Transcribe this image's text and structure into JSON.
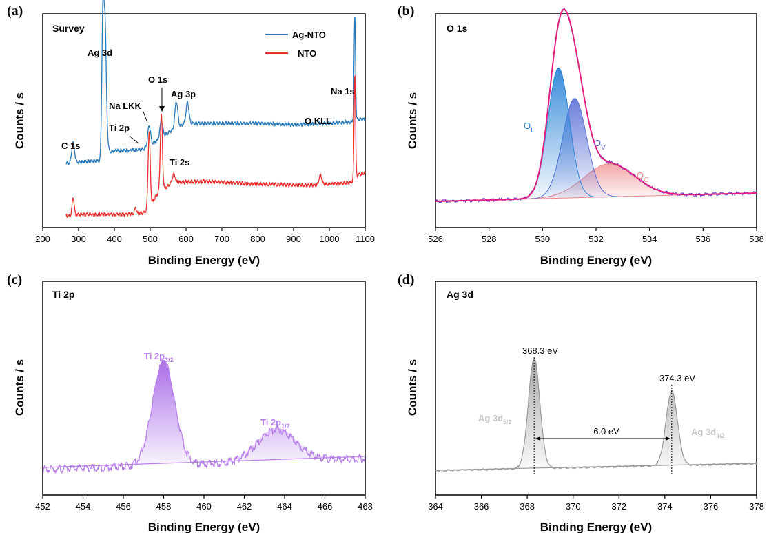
{
  "chart_data": [
    {
      "panel": "(a)",
      "title": "Survey",
      "type": "line",
      "xlabel": "Binding Energy (eV)",
      "ylabel": "Counts / s",
      "xlim": [
        200,
        1100
      ],
      "xticks": [
        200,
        300,
        400,
        500,
        600,
        700,
        800,
        900,
        1000,
        1100
      ],
      "legend_position": "top-right",
      "colors": {
        "Ag-NTO": "#2b7bb9",
        "NTO": "#e8312f"
      },
      "series": [
        {
          "name": "Ag-NTO",
          "baseline": [
            [
              200,
              0.4
            ],
            [
              280,
              0.4
            ],
            [
              300,
              0.41
            ],
            [
              360,
              0.42
            ],
            [
              375,
              0.47
            ],
            [
              400,
              0.49
            ],
            [
              480,
              0.5
            ],
            [
              500,
              0.53
            ],
            [
              560,
              0.64
            ],
            [
              600,
              0.69
            ],
            [
              700,
              0.69
            ],
            [
              800,
              0.69
            ],
            [
              900,
              0.68
            ],
            [
              1000,
              0.69
            ],
            [
              1060,
              0.7
            ],
            [
              1080,
              0.72
            ],
            [
              1100,
              0.72
            ]
          ],
          "peaks": [
            [
              285,
              0.15,
              4
            ],
            [
              368,
              1.05,
              3
            ],
            [
              374,
              0.72,
              3
            ],
            [
              377,
              0.2,
              4
            ],
            [
              497,
              0.15,
              4
            ],
            [
              531,
              0.12,
              4
            ],
            [
              573,
              0.19,
              4
            ],
            [
              604,
              0.15,
              4
            ],
            [
              1071,
              0.75,
              2
            ]
          ]
        },
        {
          "name": "NTO",
          "baseline": [
            [
              200,
              0.02
            ],
            [
              280,
              0.02
            ],
            [
              300,
              0.03
            ],
            [
              460,
              0.03
            ],
            [
              490,
              0.05
            ],
            [
              520,
              0.18
            ],
            [
              560,
              0.26
            ],
            [
              650,
              0.27
            ],
            [
              800,
              0.25
            ],
            [
              960,
              0.24
            ],
            [
              1000,
              0.25
            ],
            [
              1060,
              0.26
            ],
            [
              1080,
              0.32
            ],
            [
              1100,
              0.33
            ]
          ],
          "peaks": [
            [
              285,
              0.13,
              3
            ],
            [
              459,
              0.05,
              3
            ],
            [
              497,
              0.55,
              3
            ],
            [
              531,
              0.55,
              3
            ],
            [
              566,
              0.06,
              4
            ],
            [
              975,
              0.07,
              4
            ],
            [
              1071,
              0.75,
              2
            ]
          ]
        }
      ],
      "annotations": [
        "Ag 3d",
        "O 1s",
        "Na LKK",
        "Ag 3p",
        "Na 1s",
        "Ti 2p",
        "C 1s",
        "O KLL",
        "Ti 2s"
      ]
    },
    {
      "panel": "(b)",
      "title": "O 1s",
      "type": "line",
      "xlabel": "Binding Energy (eV)",
      "ylabel": "Counts / s",
      "xlim": [
        526,
        538
      ],
      "xticks": [
        526,
        528,
        530,
        532,
        534,
        536,
        538
      ],
      "baseline": [
        [
          526,
          0.0
        ],
        [
          538,
          0.04
        ]
      ],
      "envelope_color": "#e0207e",
      "series": [
        {
          "name": "O_L",
          "color": "#2f86d8",
          "center": 530.6,
          "height": 0.63,
          "sigma": 0.4
        },
        {
          "name": "O_V",
          "color": "#5a6fd6",
          "center": 531.2,
          "height": 0.48,
          "sigma": 0.45
        },
        {
          "name": "O_C",
          "color": "#f08a8a",
          "center": 532.5,
          "height": 0.16,
          "sigma": 0.95
        }
      ],
      "annotations": [
        {
          "main": "O",
          "sub": "L",
          "color": "#2f86d8"
        },
        {
          "main": "O",
          "sub": "V",
          "color": "#5a6fd6"
        },
        {
          "main": "O",
          "sub": "C",
          "color": "#f08a8a"
        }
      ]
    },
    {
      "panel": "(c)",
      "title": "Ti 2p",
      "type": "line",
      "xlabel": "Binding Energy (eV)",
      "ylabel": "Counts / s",
      "xlim": [
        452,
        468
      ],
      "xticks": [
        452,
        454,
        456,
        458,
        460,
        462,
        464,
        466,
        468
      ],
      "color": "#b77fe8",
      "baseline": [
        [
          452,
          0.02
        ],
        [
          468,
          0.1
        ]
      ],
      "series": [
        {
          "name": "Ti 2p3/2",
          "center": 458.0,
          "height": 0.75,
          "sigma": 0.55
        },
        {
          "name": "Ti 2p1/2",
          "center": 463.6,
          "height": 0.23,
          "sigma": 0.95
        }
      ],
      "annotations": [
        {
          "main": "Ti 2p",
          "sub": "3/2"
        },
        {
          "main": "Ti 2p",
          "sub": "1/2"
        }
      ]
    },
    {
      "panel": "(d)",
      "title": "Ag 3d",
      "type": "line",
      "xlabel": "Binding Energy (eV)",
      "ylabel": "Counts / s",
      "xlim": [
        364,
        378
      ],
      "xticks": [
        364,
        366,
        368,
        370,
        372,
        374,
        376,
        378
      ],
      "color": "#9a9a9a",
      "baseline": [
        [
          364,
          0.02
        ],
        [
          378,
          0.07
        ]
      ],
      "series": [
        {
          "name": "Ag 3d5/2",
          "center": 368.3,
          "height": 0.8,
          "sigma": 0.25
        },
        {
          "name": "Ag 3d3/2",
          "center": 374.3,
          "height": 0.54,
          "sigma": 0.25
        }
      ],
      "annotations": {
        "peak1_energy": "368.3 eV",
        "peak2_energy": "374.3 eV",
        "splitting": "6.0 eV",
        "label1": {
          "main": "Ag 3d",
          "sub": "5/2"
        },
        "label2": {
          "main": "Ag 3d",
          "sub": "3/2"
        }
      }
    }
  ]
}
